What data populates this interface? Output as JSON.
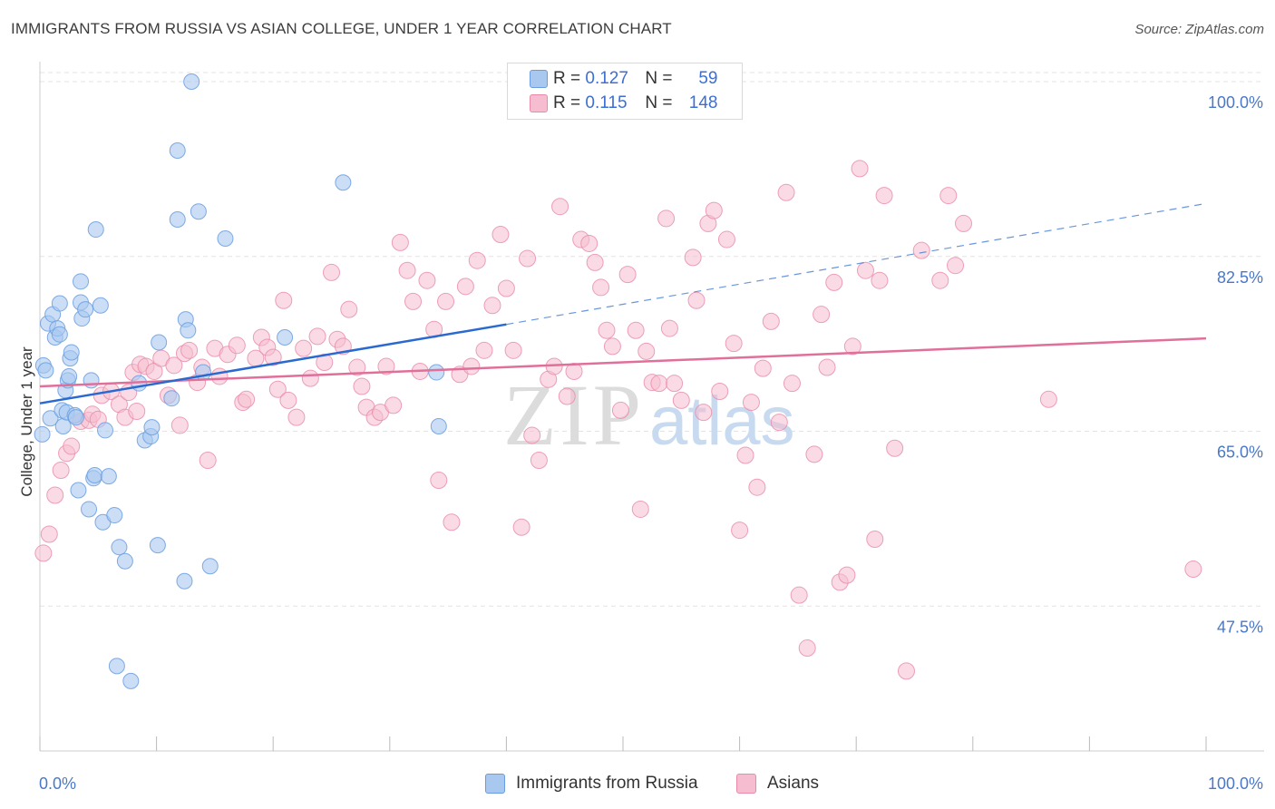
{
  "header": {
    "title": "IMMIGRANTS FROM RUSSIA VS ASIAN COLLEGE, UNDER 1 YEAR CORRELATION CHART",
    "source": "Source: ZipAtlas.com"
  },
  "watermark": {
    "zip": "ZIP",
    "atlas": "atlas"
  },
  "legend": {
    "rows": [
      {
        "r_label": "R =",
        "r_value": "0.127",
        "n_label": "N =",
        "n_value": "59",
        "color": "#a8c8f0"
      },
      {
        "r_label": "R =",
        "r_value": "0.115",
        "n_label": "N =",
        "n_value": "148",
        "color": "#f6bdd0"
      }
    ]
  },
  "bottom_legend": {
    "items": [
      {
        "label": "Immigrants from Russia",
        "color": "#a8c8f0"
      },
      {
        "label": "Asians",
        "color": "#f6bdd0"
      }
    ]
  },
  "colors": {
    "blue_fill": "#a8c8f0",
    "blue_stroke": "#6a9de0",
    "blue_line": "#2a6ad0",
    "pink_fill": "#f6bdd0",
    "pink_stroke": "#e88aa8",
    "pink_line": "#e0709a",
    "grid": "#e3e3e3",
    "axis_text": "#4a78c9"
  },
  "chart_data": {
    "type": "scatter",
    "title": "IMMIGRANTS FROM RUSSIA VS ASIAN COLLEGE, UNDER 1 YEAR CORRELATION CHART",
    "xlabel": "",
    "ylabel": "College, Under 1 year",
    "xlim": [
      0,
      100
    ],
    "ylim": [
      33,
      102
    ],
    "x_tick_labels": [
      "0.0%",
      "100.0%"
    ],
    "y_ticks": [
      47.5,
      65.0,
      82.5,
      100.0
    ],
    "y_tick_labels": [
      "47.5%",
      "65.0%",
      "82.5%",
      "100.0%"
    ],
    "grid": "horizontal dashed",
    "legend_position": "top-center",
    "series": [
      {
        "name": "Immigrants from Russia",
        "color": "#a8c8f0",
        "trend": {
          "x": [
            0,
            40
          ],
          "y": [
            67.8,
            75.7
          ],
          "dashed_extension_to": [
            100,
            87.8
          ]
        },
        "points": [
          [
            0.2,
            64.7
          ],
          [
            0.3,
            71.6
          ],
          [
            0.5,
            71.1
          ],
          [
            0.7,
            75.8
          ],
          [
            0.9,
            66.3
          ],
          [
            1.1,
            76.7
          ],
          [
            1.3,
            74.4
          ],
          [
            1.5,
            75.3
          ],
          [
            1.7,
            77.8
          ],
          [
            1.7,
            74.7
          ],
          [
            1.9,
            67.1
          ],
          [
            2.0,
            65.5
          ],
          [
            2.2,
            69.1
          ],
          [
            2.3,
            66.9
          ],
          [
            2.4,
            70.1
          ],
          [
            2.5,
            70.5
          ],
          [
            2.6,
            72.3
          ],
          [
            2.7,
            72.9
          ],
          [
            3.0,
            66.6
          ],
          [
            3.1,
            66.4
          ],
          [
            3.3,
            59.1
          ],
          [
            3.5,
            80.0
          ],
          [
            3.5,
            77.9
          ],
          [
            3.6,
            76.3
          ],
          [
            3.9,
            77.2
          ],
          [
            4.2,
            57.2
          ],
          [
            4.4,
            70.1
          ],
          [
            4.6,
            60.3
          ],
          [
            4.7,
            60.6
          ],
          [
            4.8,
            85.2
          ],
          [
            5.2,
            77.6
          ],
          [
            5.4,
            55.9
          ],
          [
            5.6,
            65.1
          ],
          [
            5.9,
            60.5
          ],
          [
            6.4,
            56.6
          ],
          [
            6.6,
            41.5
          ],
          [
            6.8,
            53.4
          ],
          [
            7.3,
            52.0
          ],
          [
            7.8,
            40.0
          ],
          [
            8.5,
            69.8
          ],
          [
            9.0,
            64.1
          ],
          [
            9.5,
            64.5
          ],
          [
            9.6,
            65.4
          ],
          [
            10.1,
            53.6
          ],
          [
            10.2,
            73.9
          ],
          [
            11.3,
            68.3
          ],
          [
            11.8,
            86.2
          ],
          [
            11.8,
            93.1
          ],
          [
            12.4,
            50.0
          ],
          [
            12.5,
            76.2
          ],
          [
            12.7,
            75.1
          ],
          [
            13.0,
            100.0
          ],
          [
            13.6,
            87.0
          ],
          [
            14.0,
            70.9
          ],
          [
            14.6,
            51.5
          ],
          [
            15.9,
            84.3
          ],
          [
            21.0,
            74.4
          ],
          [
            26.0,
            89.9
          ],
          [
            34.0,
            70.9
          ],
          [
            34.2,
            65.5
          ]
        ]
      },
      {
        "name": "Asians",
        "color": "#f6bdd0",
        "trend": {
          "x": [
            0,
            100
          ],
          "y": [
            69.5,
            74.3
          ]
        },
        "points": [
          [
            0.3,
            52.8
          ],
          [
            0.8,
            54.7
          ],
          [
            1.3,
            58.6
          ],
          [
            1.8,
            61.1
          ],
          [
            2.3,
            62.8
          ],
          [
            2.7,
            63.5
          ],
          [
            3.5,
            66.0
          ],
          [
            4.2,
            66.1
          ],
          [
            4.5,
            66.7
          ],
          [
            5.0,
            66.2
          ],
          [
            5.3,
            68.6
          ],
          [
            6.1,
            69.0
          ],
          [
            6.8,
            67.7
          ],
          [
            7.3,
            66.4
          ],
          [
            7.6,
            68.9
          ],
          [
            8.0,
            70.9
          ],
          [
            8.3,
            67.0
          ],
          [
            8.6,
            71.7
          ],
          [
            9.1,
            71.5
          ],
          [
            9.8,
            71.0
          ],
          [
            10.4,
            72.3
          ],
          [
            11.0,
            68.6
          ],
          [
            11.5,
            71.6
          ],
          [
            12.0,
            65.6
          ],
          [
            12.4,
            72.8
          ],
          [
            12.8,
            73.1
          ],
          [
            13.5,
            69.9
          ],
          [
            13.9,
            71.4
          ],
          [
            14.4,
            62.1
          ],
          [
            15.0,
            73.3
          ],
          [
            15.4,
            70.5
          ],
          [
            16.1,
            72.7
          ],
          [
            16.9,
            73.6
          ],
          [
            17.4,
            67.9
          ],
          [
            17.7,
            68.2
          ],
          [
            18.5,
            72.3
          ],
          [
            19.0,
            74.4
          ],
          [
            19.5,
            73.4
          ],
          [
            20.0,
            72.4
          ],
          [
            20.4,
            69.2
          ],
          [
            20.9,
            78.1
          ],
          [
            21.3,
            68.1
          ],
          [
            22.0,
            66.4
          ],
          [
            22.6,
            73.3
          ],
          [
            23.2,
            70.3
          ],
          [
            23.8,
            74.5
          ],
          [
            24.4,
            71.9
          ],
          [
            25.0,
            80.9
          ],
          [
            25.5,
            74.2
          ],
          [
            26.0,
            73.5
          ],
          [
            26.5,
            77.2
          ],
          [
            27.2,
            71.4
          ],
          [
            27.6,
            69.5
          ],
          [
            28.0,
            67.4
          ],
          [
            28.7,
            66.4
          ],
          [
            29.2,
            66.9
          ],
          [
            29.7,
            71.5
          ],
          [
            30.3,
            67.6
          ],
          [
            30.9,
            83.9
          ],
          [
            31.5,
            81.1
          ],
          [
            32.0,
            78.0
          ],
          [
            32.6,
            71.0
          ],
          [
            33.2,
            80.1
          ],
          [
            33.8,
            75.2
          ],
          [
            34.2,
            60.1
          ],
          [
            34.8,
            78.0
          ],
          [
            35.3,
            55.9
          ],
          [
            36.0,
            70.7
          ],
          [
            36.5,
            79.5
          ],
          [
            37.0,
            71.5
          ],
          [
            37.5,
            82.1
          ],
          [
            38.1,
            73.1
          ],
          [
            38.8,
            77.6
          ],
          [
            39.5,
            84.7
          ],
          [
            40.0,
            79.3
          ],
          [
            40.6,
            73.1
          ],
          [
            41.3,
            55.4
          ],
          [
            41.8,
            82.3
          ],
          [
            42.2,
            64.6
          ],
          [
            42.8,
            62.1
          ],
          [
            43.6,
            70.2
          ],
          [
            44.1,
            71.5
          ],
          [
            44.6,
            87.5
          ],
          [
            45.2,
            68.5
          ],
          [
            45.8,
            71.0
          ],
          [
            46.4,
            84.2
          ],
          [
            47.1,
            83.8
          ],
          [
            47.6,
            81.9
          ],
          [
            48.1,
            79.4
          ],
          [
            48.6,
            75.1
          ],
          [
            49.1,
            73.5
          ],
          [
            49.8,
            67.1
          ],
          [
            50.4,
            80.7
          ],
          [
            51.1,
            75.1
          ],
          [
            51.5,
            57.2
          ],
          [
            52.0,
            73.0
          ],
          [
            52.5,
            69.9
          ],
          [
            53.1,
            69.8
          ],
          [
            53.7,
            86.3
          ],
          [
            54.0,
            75.3
          ],
          [
            54.4,
            69.8
          ],
          [
            55.0,
            68.1
          ],
          [
            56.0,
            82.4
          ],
          [
            56.3,
            78.1
          ],
          [
            56.9,
            66.9
          ],
          [
            57.3,
            85.8
          ],
          [
            57.8,
            87.1
          ],
          [
            58.3,
            69.0
          ],
          [
            58.9,
            84.2
          ],
          [
            59.5,
            73.8
          ],
          [
            60.0,
            55.1
          ],
          [
            60.5,
            62.6
          ],
          [
            61.0,
            67.9
          ],
          [
            61.5,
            59.4
          ],
          [
            62.0,
            71.3
          ],
          [
            62.7,
            76.0
          ],
          [
            63.4,
            65.9
          ],
          [
            64.0,
            88.9
          ],
          [
            64.5,
            69.8
          ],
          [
            65.1,
            48.6
          ],
          [
            65.8,
            43.3
          ],
          [
            66.4,
            62.7
          ],
          [
            67.0,
            76.7
          ],
          [
            67.5,
            71.4
          ],
          [
            68.1,
            79.9
          ],
          [
            68.6,
            49.9
          ],
          [
            69.2,
            50.6
          ],
          [
            69.7,
            73.5
          ],
          [
            70.3,
            91.3
          ],
          [
            70.8,
            81.1
          ],
          [
            71.6,
            54.2
          ],
          [
            72.0,
            80.1
          ],
          [
            72.4,
            88.6
          ],
          [
            73.3,
            63.3
          ],
          [
            74.3,
            41.0
          ],
          [
            75.6,
            83.1
          ],
          [
            77.2,
            80.1
          ],
          [
            77.9,
            88.6
          ],
          [
            78.5,
            81.6
          ],
          [
            79.2,
            85.8
          ],
          [
            86.5,
            68.2
          ],
          [
            98.9,
            51.2
          ]
        ]
      }
    ]
  }
}
